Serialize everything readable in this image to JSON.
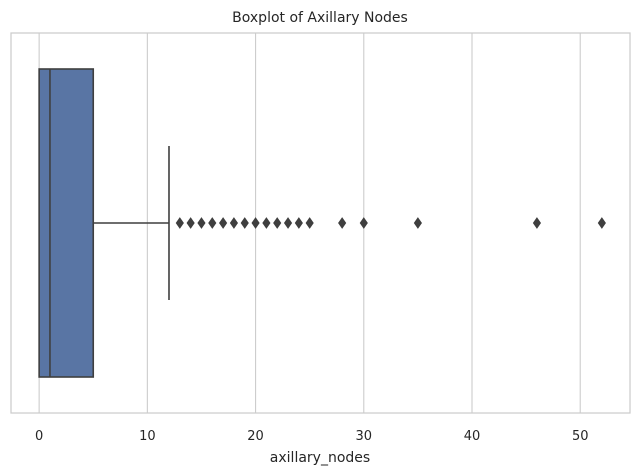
{
  "chart_data": {
    "type": "box",
    "orientation": "horizontal",
    "title": "Boxplot of Axillary Nodes",
    "xlabel": "axillary_nodes",
    "ylabel": "",
    "xlim": [
      -2.6,
      54.6
    ],
    "xticks": [
      0,
      10,
      20,
      30,
      40,
      50
    ],
    "grid": true,
    "box": {
      "min": 0,
      "q1": 0,
      "median": 1,
      "q3": 5,
      "whisker_high": 12
    },
    "outliers": [
      13,
      14,
      15,
      16,
      17,
      18,
      19,
      20,
      21,
      22,
      23,
      24,
      25,
      28,
      30,
      35,
      46,
      52
    ],
    "colors": {
      "box_fill": "#5975a4",
      "line": "#3f3f3f",
      "grid": "#cccccc",
      "frame": "#cccccc",
      "text": "#262626"
    }
  }
}
